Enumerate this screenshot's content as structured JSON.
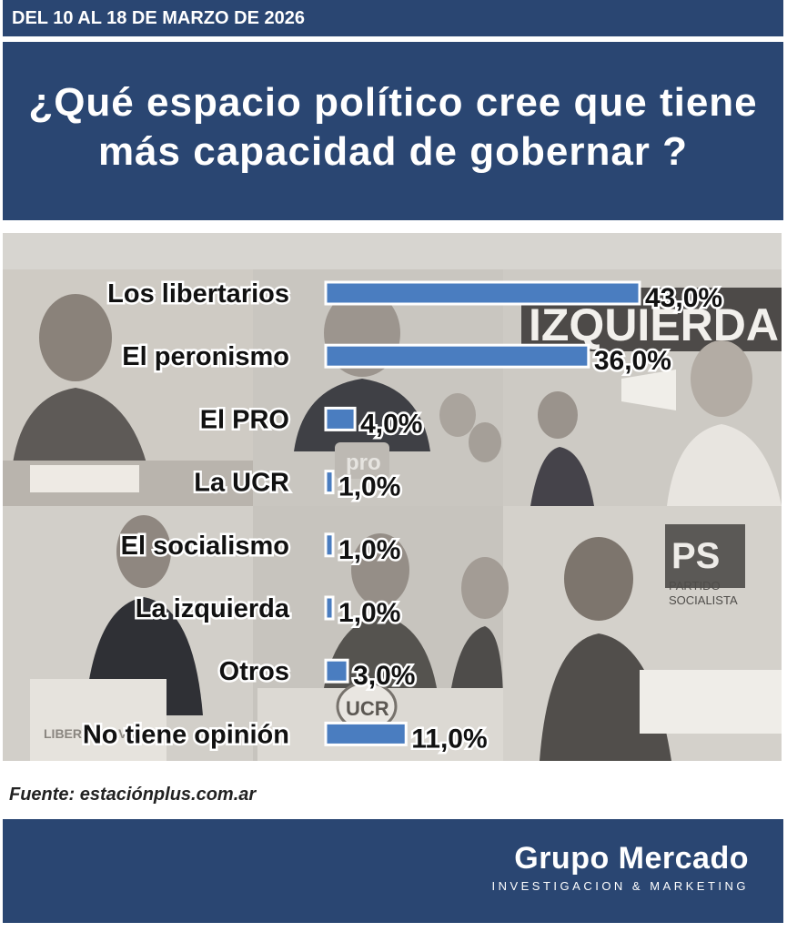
{
  "header": {
    "date_range": "DEL 10 AL 18 DE MARZO DE 2026",
    "question": "¿Qué espacio político cree que tiene\nmás capacidad de gobernar ?"
  },
  "background_signs": {
    "izquierda_banner": "IZQUIERDA",
    "ps_logo": "PS",
    "partido_socialista": "PARTIDO\nSOCIALISTA",
    "ucr_logo": "UCR",
    "pro_logo": "pro",
    "libertad_avanza": "LIBERTAD\nAVANZA"
  },
  "colors": {
    "header_bg": "#2a4672",
    "bar_fill": "#4a7dc0",
    "bar_border": "#ffffff",
    "photo_bg": "#d7d5d0"
  },
  "chart_data": {
    "type": "bar",
    "orientation": "horizontal",
    "title": "¿Qué espacio político cree que tiene más capacidad de gobernar ?",
    "categories": [
      "Los libertarios",
      "El peronismo",
      "El PRO",
      "La UCR",
      "El socialismo",
      "La izquierda",
      "Otros",
      "No tiene opinión"
    ],
    "values": [
      43.0,
      36.0,
      4.0,
      1.0,
      1.0,
      1.0,
      3.0,
      11.0
    ],
    "value_labels": [
      "43,0%",
      "36,0%",
      "4,0%",
      "1,0%",
      "1,0%",
      "1,0%",
      "3,0%",
      "11,0%"
    ],
    "unit": "%",
    "grid": false,
    "legend": "none"
  },
  "source": "Fuente: estaciónplus.com.ar",
  "footer": {
    "brand_name": "Grupo Mercado",
    "brand_subtitle": "INVESTIGACION & MARKETING"
  }
}
